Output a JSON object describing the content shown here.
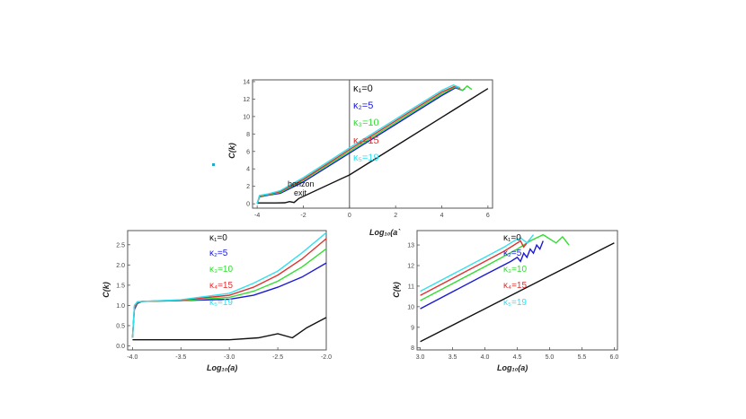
{
  "colors": {
    "k1": "#111111",
    "k2": "#1a1ad6",
    "k3": "#33dd33",
    "k4": "#e23030",
    "k5": "#33e0f0",
    "axis": "#555555",
    "marker": "#2aa6c8"
  },
  "chart_data": [
    {
      "id": "top",
      "type": "line",
      "title": "",
      "xlabel": "Log₁₀(a`",
      "ylabel": "C(k)",
      "xlim": [
        -4.2,
        6.2
      ],
      "ylim": [
        -0.5,
        14.2
      ],
      "xticks": [
        -4,
        -2,
        0,
        2,
        4,
        6
      ],
      "xticklabels": [
        "-4",
        "-2",
        "0",
        "2",
        "4",
        "6"
      ],
      "yticks": [
        0,
        2,
        4,
        6,
        8,
        10,
        12,
        14
      ],
      "yticklabels": [
        "0",
        "2",
        "4",
        "6",
        "8",
        "10",
        "12",
        "14"
      ],
      "vline_x": 0,
      "legend": [
        "κ₁=0",
        "κ₂=5",
        "κ₃=10",
        "κ₄=15",
        "κ₅=19"
      ],
      "annotation": [
        "horizon",
        "exit"
      ],
      "series": [
        {
          "name": "κ₁=0",
          "x": [
            -4,
            -3.2,
            -2.8,
            -2.6,
            -2.4,
            -2.2,
            0,
            2,
            4,
            6.0
          ],
          "y": [
            0.1,
            0.1,
            0.12,
            0.25,
            0.15,
            0.6,
            3.3,
            6.6,
            9.9,
            13.2
          ]
        },
        {
          "name": "κ₂=5",
          "x": [
            -4,
            -3.9,
            -3.5,
            -3,
            -2,
            0,
            2,
            4,
            4.6,
            4.9,
            5.0
          ],
          "y": [
            0.0,
            0.8,
            1.0,
            1.2,
            2.5,
            5.8,
            9.1,
            12.4,
            13.3,
            13.0,
            13.2
          ]
        },
        {
          "name": "κ₃=10",
          "x": [
            -4,
            -3.9,
            -3.5,
            -3,
            -2,
            0,
            2,
            4,
            4.6,
            4.9,
            5.1,
            5.3
          ],
          "y": [
            0.0,
            0.85,
            1.05,
            1.3,
            2.7,
            6.0,
            9.3,
            12.6,
            13.4,
            13.0,
            13.5,
            13.1
          ]
        },
        {
          "name": "κ₄=15",
          "x": [
            -4,
            -3.9,
            -3.5,
            -3,
            -2,
            0,
            2,
            4,
            4.6,
            4.8
          ],
          "y": [
            0.0,
            0.9,
            1.1,
            1.4,
            2.8,
            6.2,
            9.5,
            12.8,
            13.5,
            13.2
          ]
        },
        {
          "name": "κ₅=19",
          "x": [
            -4,
            -3.9,
            -3.5,
            -3,
            -2,
            0,
            2,
            4,
            4.5,
            4.8
          ],
          "y": [
            0.0,
            0.95,
            1.15,
            1.5,
            3.0,
            6.4,
            9.7,
            13.0,
            13.6,
            13.3
          ]
        }
      ]
    },
    {
      "id": "bottom-left",
      "type": "line",
      "title": "",
      "xlabel": "Log₁₀(a)",
      "ylabel": "C(k)",
      "xlim": [
        -4.05,
        -2.0
      ],
      "ylim": [
        -0.1,
        2.85
      ],
      "xticks": [
        -4.0,
        -3.5,
        -3.0,
        -2.5,
        -2.0
      ],
      "xticklabels": [
        "-4.0",
        "-3.5",
        "-3.0",
        "-2.5",
        "-2.0"
      ],
      "yticks": [
        0.0,
        0.5,
        1.0,
        1.5,
        2.0,
        2.5
      ],
      "yticklabels": [
        "0.0",
        "0.5",
        "1.0",
        "1.5",
        "2.0",
        "2.5"
      ],
      "legend": [
        "κ₁=0",
        "κ₂=5",
        "κ₃=10",
        "κ₄=15",
        "κ₅=19"
      ],
      "series": [
        {
          "name": "κ₁=0",
          "x": [
            -4.0,
            -3.5,
            -3.0,
            -2.7,
            -2.5,
            -2.35,
            -2.2,
            -2.0
          ],
          "y": [
            0.15,
            0.15,
            0.15,
            0.2,
            0.3,
            0.2,
            0.45,
            0.7
          ]
        },
        {
          "name": "κ₂=5",
          "x": [
            -4.0,
            -3.98,
            -3.95,
            -3.9,
            -3.5,
            -3.0,
            -2.75,
            -2.5,
            -2.25,
            -2.0
          ],
          "y": [
            0.2,
            0.9,
            1.05,
            1.1,
            1.12,
            1.15,
            1.25,
            1.45,
            1.7,
            2.05
          ]
        },
        {
          "name": "κ₃=10",
          "x": [
            -4.0,
            -3.98,
            -3.95,
            -3.9,
            -3.5,
            -3.0,
            -2.75,
            -2.5,
            -2.25,
            -2.0
          ],
          "y": [
            0.2,
            0.95,
            1.07,
            1.1,
            1.12,
            1.2,
            1.35,
            1.6,
            1.95,
            2.4
          ]
        },
        {
          "name": "κ₄=15",
          "x": [
            -4.0,
            -3.98,
            -3.95,
            -3.9,
            -3.5,
            -3.0,
            -2.75,
            -2.5,
            -2.25,
            -2.0
          ],
          "y": [
            0.2,
            0.97,
            1.08,
            1.1,
            1.13,
            1.25,
            1.45,
            1.75,
            2.15,
            2.65
          ]
        },
        {
          "name": "κ₅=19",
          "x": [
            -4.0,
            -3.98,
            -3.95,
            -3.9,
            -3.5,
            -3.0,
            -2.75,
            -2.5,
            -2.25,
            -2.0
          ],
          "y": [
            0.2,
            1.0,
            1.09,
            1.1,
            1.14,
            1.3,
            1.55,
            1.85,
            2.3,
            2.8
          ]
        }
      ]
    },
    {
      "id": "bottom-right",
      "type": "line",
      "title": "",
      "xlabel": "Log₁₀(a)",
      "ylabel": "C(k)",
      "xlim": [
        2.95,
        6.05
      ],
      "ylim": [
        7.9,
        13.7
      ],
      "xticks": [
        3.0,
        3.5,
        4.0,
        4.5,
        5.0,
        5.5,
        6.0
      ],
      "xticklabels": [
        "3.0",
        "3.5",
        "4.0",
        "4.5",
        "5.0",
        "5.5",
        "6.0"
      ],
      "yticks": [
        8,
        9,
        10,
        11,
        12,
        13
      ],
      "yticklabels": [
        "8",
        "9",
        "10",
        "11",
        "12",
        "13"
      ],
      "legend": [
        "κ₁=0",
        "κ₂=5",
        "κ₃=10",
        "κ₄=15",
        "κ₅=19"
      ],
      "series": [
        {
          "name": "κ₁=0",
          "x": [
            3.0,
            4.0,
            5.0,
            6.0
          ],
          "y": [
            8.3,
            9.9,
            11.5,
            13.1
          ]
        },
        {
          "name": "κ₂=5",
          "x": [
            3.0,
            4.0,
            4.4,
            4.5,
            4.55,
            4.6,
            4.65,
            4.7,
            4.75,
            4.8,
            4.85,
            4.9
          ],
          "y": [
            9.9,
            11.55,
            12.2,
            12.4,
            12.2,
            12.6,
            12.4,
            12.8,
            12.6,
            13.0,
            12.8,
            13.2
          ]
        },
        {
          "name": "κ₃=10",
          "x": [
            3.0,
            4.0,
            4.5,
            4.7,
            4.9,
            5.1,
            5.2,
            5.3
          ],
          "y": [
            10.3,
            11.95,
            12.8,
            13.2,
            13.5,
            13.1,
            13.4,
            13.0
          ]
        },
        {
          "name": "κ₄=15",
          "x": [
            3.0,
            4.0,
            4.3,
            4.45,
            4.55,
            4.6,
            4.7
          ],
          "y": [
            10.55,
            12.2,
            12.7,
            13.0,
            13.2,
            12.9,
            13.3
          ]
        },
        {
          "name": "κ₅=19",
          "x": [
            3.0,
            4.0,
            4.3,
            4.45,
            4.55,
            4.65,
            4.75
          ],
          "y": [
            10.75,
            12.4,
            12.9,
            13.2,
            13.35,
            13.1,
            13.5
          ]
        }
      ]
    }
  ]
}
